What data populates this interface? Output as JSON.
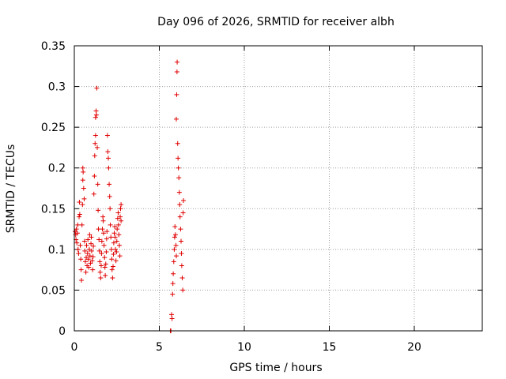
{
  "chart_data": {
    "type": "scatter",
    "title": "Day 096 of 2026, SRMTID for receiver albh",
    "xlabel": "GPS time / hours",
    "ylabel": "SRMTID / TECUs",
    "xlim": [
      0,
      24
    ],
    "ylim": [
      0,
      0.35
    ],
    "xticks": [
      0,
      5,
      10,
      15,
      20
    ],
    "xtick_labels": [
      "0",
      "5",
      "10",
      "15",
      "20"
    ],
    "yticks": [
      0,
      0.05,
      0.1,
      0.15,
      0.2,
      0.25,
      0.3,
      0.35
    ],
    "ytick_labels": [
      "0",
      "0.05",
      "0.1",
      "0.15",
      "0.2",
      "0.25",
      "0.3",
      "0.35"
    ],
    "grid": true,
    "marker": "+",
    "color": "#e00000",
    "series": [
      {
        "name": "SRMTID",
        "points": [
          [
            0.05,
            0.122
          ],
          [
            0.08,
            0.118
          ],
          [
            0.1,
            0.112
          ],
          [
            0.12,
            0.125
          ],
          [
            0.15,
            0.108
          ],
          [
            0.18,
            0.12
          ],
          [
            0.2,
            0.13
          ],
          [
            0.22,
            0.1
          ],
          [
            0.25,
            0.095
          ],
          [
            0.28,
            0.14
          ],
          [
            0.3,
            0.158
          ],
          [
            0.32,
            0.143
          ],
          [
            0.35,
            0.105
          ],
          [
            0.38,
            0.088
          ],
          [
            0.4,
            0.075
          ],
          [
            0.42,
            0.062
          ],
          [
            0.45,
            0.13
          ],
          [
            0.48,
            0.155
          ],
          [
            0.5,
            0.2
          ],
          [
            0.5,
            0.185
          ],
          [
            0.52,
            0.195
          ],
          [
            0.55,
            0.175
          ],
          [
            0.58,
            0.162
          ],
          [
            0.6,
            0.11
          ],
          [
            0.62,
            0.098
          ],
          [
            0.65,
            0.085
          ],
          [
            0.68,
            0.072
          ],
          [
            0.7,
            0.09
          ],
          [
            0.72,
            0.105
          ],
          [
            0.75,
            0.08
          ],
          [
            0.78,
            0.095
          ],
          [
            0.8,
            0.112
          ],
          [
            0.82,
            0.088
          ],
          [
            0.85,
            0.078
          ],
          [
            0.88,
            0.1
          ],
          [
            0.9,
            0.118
          ],
          [
            0.92,
            0.092
          ],
          [
            0.95,
            0.083
          ],
          [
            0.98,
            0.107
          ],
          [
            1.0,
            0.115
          ],
          [
            1.02,
            0.098
          ],
          [
            1.05,
            0.086
          ],
          [
            1.08,
            0.075
          ],
          [
            1.1,
            0.091
          ],
          [
            1.12,
            0.104
          ],
          [
            1.15,
            0.168
          ],
          [
            1.18,
            0.19
          ],
          [
            1.2,
            0.215
          ],
          [
            1.22,
            0.23
          ],
          [
            1.25,
            0.24
          ],
          [
            1.25,
            0.262
          ],
          [
            1.28,
            0.27
          ],
          [
            1.3,
            0.265
          ],
          [
            1.32,
            0.298
          ],
          [
            1.35,
            0.225
          ],
          [
            1.38,
            0.18
          ],
          [
            1.4,
            0.148
          ],
          [
            1.42,
            0.125
          ],
          [
            1.45,
            0.112
          ],
          [
            1.48,
            0.098
          ],
          [
            1.5,
            0.085
          ],
          [
            1.52,
            0.072
          ],
          [
            1.55,
            0.065
          ],
          [
            1.58,
            0.08
          ],
          [
            1.6,
            0.095
          ],
          [
            1.62,
            0.11
          ],
          [
            1.65,
            0.125
          ],
          [
            1.68,
            0.14
          ],
          [
            1.7,
            0.135
          ],
          [
            1.72,
            0.12
          ],
          [
            1.75,
            0.105
          ],
          [
            1.78,
            0.09
          ],
          [
            1.8,
            0.078
          ],
          [
            1.82,
            0.068
          ],
          [
            1.85,
            0.082
          ],
          [
            1.88,
            0.097
          ],
          [
            1.9,
            0.113
          ],
          [
            1.92,
            0.122
          ],
          [
            1.95,
            0.24
          ],
          [
            1.97,
            0.22
          ],
          [
            2.0,
            0.212
          ],
          [
            2.02,
            0.2
          ],
          [
            2.05,
            0.18
          ],
          [
            2.08,
            0.165
          ],
          [
            2.1,
            0.15
          ],
          [
            2.12,
            0.13
          ],
          [
            2.15,
            0.115
          ],
          [
            2.18,
            0.1
          ],
          [
            2.2,
            0.088
          ],
          [
            2.22,
            0.075
          ],
          [
            2.25,
            0.065
          ],
          [
            2.28,
            0.079
          ],
          [
            2.3,
            0.094
          ],
          [
            2.32,
            0.108
          ],
          [
            2.35,
            0.12
          ],
          [
            2.38,
            0.128
          ],
          [
            2.4,
            0.115
          ],
          [
            2.42,
            0.1
          ],
          [
            2.45,
            0.086
          ],
          [
            2.48,
            0.097
          ],
          [
            2.5,
            0.11
          ],
          [
            2.52,
            0.125
          ],
          [
            2.55,
            0.138
          ],
          [
            2.58,
            0.145
          ],
          [
            2.6,
            0.13
          ],
          [
            2.62,
            0.118
          ],
          [
            2.65,
            0.105
          ],
          [
            2.68,
            0.092
          ],
          [
            2.7,
            0.14
          ],
          [
            2.72,
            0.15
          ],
          [
            2.75,
            0.155
          ],
          [
            2.75,
            0.135
          ],
          [
            5.65,
            0.0
          ],
          [
            5.68,
            0.0
          ],
          [
            5.72,
            0.02
          ],
          [
            5.75,
            0.015
          ],
          [
            5.78,
            0.045
          ],
          [
            5.8,
            0.058
          ],
          [
            5.82,
            0.07
          ],
          [
            5.85,
            0.085
          ],
          [
            5.88,
            0.1
          ],
          [
            5.9,
            0.115
          ],
          [
            5.92,
            0.128
          ],
          [
            5.95,
            0.118
          ],
          [
            5.98,
            0.105
          ],
          [
            6.0,
            0.092
          ],
          [
            6.0,
            0.26
          ],
          [
            6.02,
            0.29
          ],
          [
            6.04,
            0.318
          ],
          [
            6.05,
            0.33
          ],
          [
            6.08,
            0.23
          ],
          [
            6.1,
            0.212
          ],
          [
            6.12,
            0.2
          ],
          [
            6.15,
            0.188
          ],
          [
            6.18,
            0.17
          ],
          [
            6.2,
            0.155
          ],
          [
            6.22,
            0.14
          ],
          [
            6.25,
            0.125
          ],
          [
            6.28,
            0.11
          ],
          [
            6.3,
            0.095
          ],
          [
            6.32,
            0.08
          ],
          [
            6.35,
            0.065
          ],
          [
            6.38,
            0.05
          ],
          [
            6.4,
            0.145
          ],
          [
            6.42,
            0.16
          ]
        ]
      }
    ]
  }
}
